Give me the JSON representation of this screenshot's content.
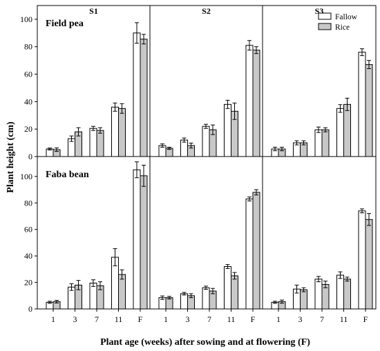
{
  "chart_data": {
    "type": "bar",
    "xlabel": "Plant age (weeks) after sowing and at flowering (F)",
    "ylabel": "Plant height (cm)",
    "categories": [
      "1",
      "3",
      "7",
      "11",
      "F"
    ],
    "columns": [
      "S1",
      "S2",
      "S3"
    ],
    "rows": [
      {
        "label": "Field pea",
        "ylim": [
          0,
          110
        ],
        "yticks": [
          0,
          20,
          40,
          60,
          80,
          100
        ]
      },
      {
        "label": "Faba bean",
        "ylim": [
          0,
          115
        ],
        "yticks": [
          0,
          20,
          40,
          60,
          80,
          100
        ]
      }
    ],
    "legend": {
      "position": "top-right",
      "items": [
        "Fallow",
        "Rice"
      ]
    },
    "series_colors": {
      "Fallow": "#ffffff",
      "Rice": "#c8c8c8"
    },
    "panels": [
      {
        "row": "Field pea",
        "column": "S1",
        "series": [
          {
            "name": "Fallow",
            "values": [
              5.5,
              13,
              20.5,
              36,
              90
            ],
            "errors": [
              0.7,
              2,
              1.5,
              3,
              7.5
            ]
          },
          {
            "name": "Rice",
            "values": [
              5,
              18,
              19,
              35,
              85.5
            ],
            "errors": [
              1.3,
              3,
              2,
              3.5,
              3.5
            ]
          }
        ]
      },
      {
        "row": "Field pea",
        "column": "S2",
        "series": [
          {
            "name": "Fallow",
            "values": [
              8,
              12,
              22,
              38,
              81
            ],
            "errors": [
              1.2,
              1.5,
              1.5,
              3,
              3.5
            ]
          },
          {
            "name": "Rice",
            "values": [
              6,
              8,
              19.5,
              33,
              77.5
            ],
            "errors": [
              0.8,
              1.8,
              3.5,
              6,
              2.5
            ]
          }
        ]
      },
      {
        "row": "Field pea",
        "column": "S3",
        "series": [
          {
            "name": "Fallow",
            "values": [
              5.5,
              10,
              19.5,
              35,
              76
            ],
            "errors": [
              1.3,
              1.5,
              2,
              2.8,
              2.5
            ]
          },
          {
            "name": "Rice",
            "values": [
              5.5,
              10,
              19.5,
              38,
              67
            ],
            "errors": [
              1.3,
              1.5,
              1.5,
              4.5,
              3
            ]
          }
        ]
      },
      {
        "row": "Faba bean",
        "column": "S1",
        "series": [
          {
            "name": "Fallow",
            "values": [
              5,
              16.5,
              19.5,
              39,
              105
            ],
            "errors": [
              0.8,
              2.5,
              2.5,
              6.5,
              6
            ]
          },
          {
            "name": "Rice",
            "values": [
              5.5,
              18,
              17.5,
              26,
              100.5
            ],
            "errors": [
              1,
              3.5,
              3,
              3.5,
              8
            ]
          }
        ]
      },
      {
        "row": "Faba bean",
        "column": "S2",
        "series": [
          {
            "name": "Fallow",
            "values": [
              8.5,
              11.5,
              16,
              32,
              83
            ],
            "errors": [
              1.3,
              1,
              1.2,
              1.5,
              1.5
            ]
          },
          {
            "name": "Rice",
            "values": [
              8.5,
              10,
              13.5,
              25,
              88
            ],
            "errors": [
              1,
              1.5,
              2,
              2.5,
              2
            ]
          }
        ]
      },
      {
        "row": "Faba bean",
        "column": "S3",
        "series": [
          {
            "name": "Fallow",
            "values": [
              5,
              15,
              22.5,
              25.5,
              74
            ],
            "errors": [
              0.8,
              3,
              2,
              2.5,
              1.5
            ]
          },
          {
            "name": "Rice",
            "values": [
              5.5,
              14.5,
              18.5,
              22.5,
              67.5
            ],
            "errors": [
              1.2,
              1.5,
              2.5,
              1.5,
              4.5
            ]
          }
        ]
      }
    ]
  }
}
